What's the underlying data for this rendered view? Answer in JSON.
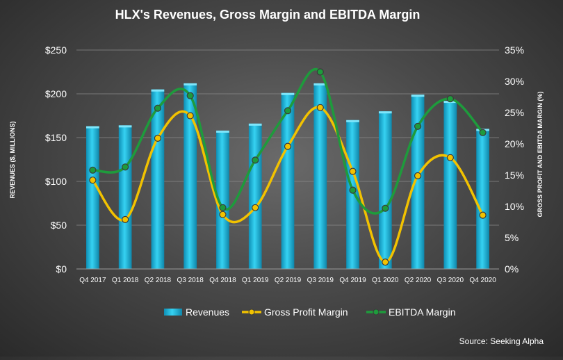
{
  "chart_data": {
    "type": "bar",
    "title": "HLX's Revenues, Gross Margin and EBITDA Margin",
    "ylabel": "REVENUES ($, MILLIONS)",
    "y2label": "GROSS PROFIT AND EBITDA MARGIN (%)",
    "source": "Source: Seeking Alpha",
    "categories": [
      "Q4 2017",
      "Q1 2018",
      "Q2 2018",
      "Q3 2018",
      "Q4 2018",
      "Q1 2019",
      "Q2 2019",
      "Q3 2019",
      "Q4 2019",
      "Q1 2020",
      "Q2 2020",
      "Q3 2020",
      "Q4 2020"
    ],
    "ylim": [
      0,
      250
    ],
    "y_ticks": [
      "$0",
      "$50",
      "$100",
      "$150",
      "$200",
      "$250"
    ],
    "y_tick_values": [
      0,
      50,
      100,
      150,
      200,
      250
    ],
    "y2lim": [
      0,
      35
    ],
    "y2_ticks": [
      "0%",
      "5%",
      "10%",
      "15%",
      "20%",
      "25%",
      "30%",
      "35%"
    ],
    "y2_tick_values": [
      0,
      5,
      10,
      15,
      20,
      25,
      30,
      35
    ],
    "grid": true,
    "legend_position": "bottom",
    "series": [
      {
        "name": "Revenues",
        "kind": "bar",
        "axis": "left",
        "color": "#1fb6d8",
        "values": [
          163,
          164,
          205,
          212,
          158,
          166,
          201,
          212,
          170,
          180,
          199,
          192,
          160
        ]
      },
      {
        "name": "Gross Profit Margin",
        "kind": "line",
        "axis": "right",
        "color": "#f2c200",
        "values": [
          14.2,
          7.9,
          20.9,
          24.5,
          8.7,
          9.8,
          19.6,
          25.8,
          15.6,
          1.1,
          14.9,
          17.8,
          8.6
        ]
      },
      {
        "name": "EBITDA Margin",
        "kind": "line",
        "axis": "right",
        "color": "#1e9b3c",
        "values": [
          15.8,
          16.3,
          25.7,
          27.7,
          9.8,
          17.4,
          25.3,
          31.5,
          12.6,
          9.7,
          22.8,
          27.2,
          21.8
        ]
      }
    ]
  }
}
